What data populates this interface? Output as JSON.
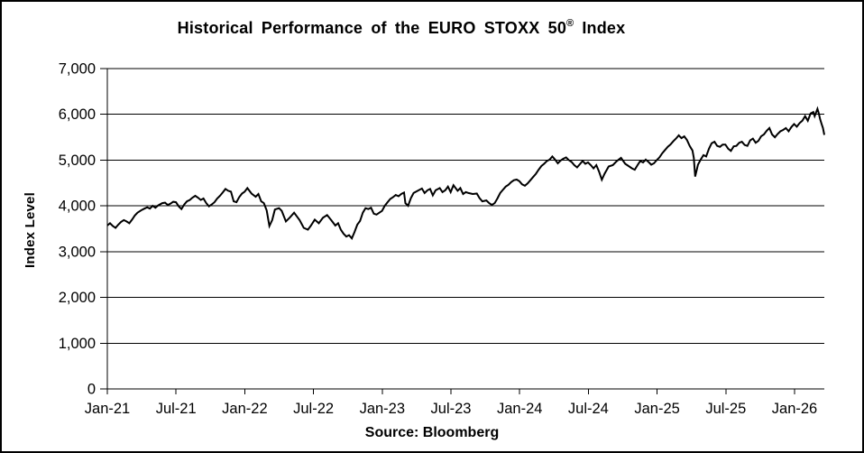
{
  "chart_data": {
    "type": "line",
    "title": "Historical Performance of the EURO STOXX 50® Index",
    "title_main": "Historical Performance of the EURO STOXX 50",
    "title_sup": "®",
    "title_tail": " Index",
    "ylabel": "Index Level",
    "xlabel": "",
    "source": "Source: Bloomberg",
    "ylim": [
      0,
      7000
    ],
    "ytick_step": 1000,
    "ytick_labels": [
      "0",
      "1,000",
      "2,000",
      "3,000",
      "4,000",
      "5,000",
      "6,000",
      "7,000"
    ],
    "xtick_labels": [
      "Jan-21",
      "Jul-21",
      "Jan-22",
      "Jul-22",
      "Jan-23",
      "Jul-23",
      "Jan-24",
      "Jul-24",
      "Jan-25",
      "Jul-25",
      "Jan-26"
    ],
    "x_domain_years": [
      2021.0,
      2026.22
    ],
    "grid": true,
    "legend": "none",
    "line_color": "#000000",
    "line_width": 2,
    "background_color": "#ffffff",
    "series": [
      {
        "name": "EURO STOXX 50 Index Level",
        "x_unit": "decimal-year",
        "points": [
          [
            2021.0,
            3570
          ],
          [
            2021.02,
            3620
          ],
          [
            2021.04,
            3560
          ],
          [
            2021.06,
            3520
          ],
          [
            2021.08,
            3590
          ],
          [
            2021.1,
            3650
          ],
          [
            2021.12,
            3690
          ],
          [
            2021.14,
            3660
          ],
          [
            2021.16,
            3620
          ],
          [
            2021.18,
            3700
          ],
          [
            2021.2,
            3790
          ],
          [
            2021.22,
            3850
          ],
          [
            2021.25,
            3910
          ],
          [
            2021.27,
            3940
          ],
          [
            2021.29,
            3970
          ],
          [
            2021.31,
            3940
          ],
          [
            2021.33,
            4000
          ],
          [
            2021.35,
            3960
          ],
          [
            2021.37,
            4010
          ],
          [
            2021.4,
            4060
          ],
          [
            2021.42,
            4070
          ],
          [
            2021.44,
            4020
          ],
          [
            2021.46,
            4050
          ],
          [
            2021.48,
            4090
          ],
          [
            2021.5,
            4080
          ],
          [
            2021.52,
            3990
          ],
          [
            2021.54,
            3930
          ],
          [
            2021.56,
            4030
          ],
          [
            2021.58,
            4100
          ],
          [
            2021.6,
            4130
          ],
          [
            2021.62,
            4180
          ],
          [
            2021.64,
            4220
          ],
          [
            2021.66,
            4180
          ],
          [
            2021.68,
            4130
          ],
          [
            2021.7,
            4160
          ],
          [
            2021.72,
            4060
          ],
          [
            2021.74,
            3990
          ],
          [
            2021.76,
            4030
          ],
          [
            2021.78,
            4080
          ],
          [
            2021.8,
            4160
          ],
          [
            2021.82,
            4220
          ],
          [
            2021.84,
            4290
          ],
          [
            2021.86,
            4370
          ],
          [
            2021.88,
            4330
          ],
          [
            2021.9,
            4310
          ],
          [
            2021.92,
            4100
          ],
          [
            2021.94,
            4080
          ],
          [
            2021.96,
            4190
          ],
          [
            2021.98,
            4270
          ],
          [
            2022.0,
            4310
          ],
          [
            2022.02,
            4390
          ],
          [
            2022.05,
            4270
          ],
          [
            2022.08,
            4200
          ],
          [
            2022.1,
            4260
          ],
          [
            2022.12,
            4100
          ],
          [
            2022.14,
            4060
          ],
          [
            2022.16,
            3900
          ],
          [
            2022.18,
            3560
          ],
          [
            2022.2,
            3690
          ],
          [
            2022.22,
            3920
          ],
          [
            2022.25,
            3950
          ],
          [
            2022.27,
            3890
          ],
          [
            2022.3,
            3660
          ],
          [
            2022.33,
            3750
          ],
          [
            2022.36,
            3850
          ],
          [
            2022.4,
            3690
          ],
          [
            2022.43,
            3520
          ],
          [
            2022.46,
            3480
          ],
          [
            2022.48,
            3560
          ],
          [
            2022.51,
            3700
          ],
          [
            2022.54,
            3620
          ],
          [
            2022.57,
            3740
          ],
          [
            2022.6,
            3800
          ],
          [
            2022.63,
            3690
          ],
          [
            2022.66,
            3570
          ],
          [
            2022.68,
            3620
          ],
          [
            2022.7,
            3480
          ],
          [
            2022.72,
            3390
          ],
          [
            2022.74,
            3330
          ],
          [
            2022.76,
            3360
          ],
          [
            2022.78,
            3290
          ],
          [
            2022.8,
            3430
          ],
          [
            2022.82,
            3590
          ],
          [
            2022.84,
            3670
          ],
          [
            2022.86,
            3850
          ],
          [
            2022.88,
            3950
          ],
          [
            2022.9,
            3930
          ],
          [
            2022.92,
            3960
          ],
          [
            2022.94,
            3830
          ],
          [
            2022.96,
            3810
          ],
          [
            2022.98,
            3850
          ],
          [
            2023.0,
            3890
          ],
          [
            2023.02,
            4000
          ],
          [
            2023.04,
            4080
          ],
          [
            2023.06,
            4150
          ],
          [
            2023.08,
            4190
          ],
          [
            2023.1,
            4240
          ],
          [
            2023.12,
            4210
          ],
          [
            2023.14,
            4260
          ],
          [
            2023.16,
            4290
          ],
          [
            2023.17,
            4060
          ],
          [
            2023.19,
            4000
          ],
          [
            2023.21,
            4170
          ],
          [
            2023.23,
            4280
          ],
          [
            2023.26,
            4330
          ],
          [
            2023.29,
            4380
          ],
          [
            2023.31,
            4280
          ],
          [
            2023.33,
            4340
          ],
          [
            2023.35,
            4370
          ],
          [
            2023.37,
            4230
          ],
          [
            2023.39,
            4340
          ],
          [
            2023.42,
            4390
          ],
          [
            2023.44,
            4300
          ],
          [
            2023.46,
            4340
          ],
          [
            2023.48,
            4420
          ],
          [
            2023.5,
            4300
          ],
          [
            2023.52,
            4450
          ],
          [
            2023.55,
            4330
          ],
          [
            2023.57,
            4390
          ],
          [
            2023.59,
            4260
          ],
          [
            2023.61,
            4300
          ],
          [
            2023.63,
            4280
          ],
          [
            2023.66,
            4260
          ],
          [
            2023.69,
            4270
          ],
          [
            2023.71,
            4170
          ],
          [
            2023.73,
            4100
          ],
          [
            2023.76,
            4120
          ],
          [
            2023.78,
            4060
          ],
          [
            2023.8,
            4020
          ],
          [
            2023.82,
            4060
          ],
          [
            2023.84,
            4160
          ],
          [
            2023.86,
            4280
          ],
          [
            2023.88,
            4350
          ],
          [
            2023.9,
            4420
          ],
          [
            2023.92,
            4460
          ],
          [
            2023.94,
            4520
          ],
          [
            2023.96,
            4560
          ],
          [
            2023.98,
            4575
          ],
          [
            2024.0,
            4540
          ],
          [
            2024.02,
            4470
          ],
          [
            2024.04,
            4440
          ],
          [
            2024.06,
            4490
          ],
          [
            2024.08,
            4560
          ],
          [
            2024.1,
            4630
          ],
          [
            2024.12,
            4700
          ],
          [
            2024.14,
            4790
          ],
          [
            2024.16,
            4870
          ],
          [
            2024.18,
            4920
          ],
          [
            2024.2,
            4980
          ],
          [
            2024.22,
            5010
          ],
          [
            2024.24,
            5080
          ],
          [
            2024.26,
            5010
          ],
          [
            2024.28,
            4930
          ],
          [
            2024.3,
            4990
          ],
          [
            2024.32,
            5030
          ],
          [
            2024.34,
            5060
          ],
          [
            2024.36,
            5000
          ],
          [
            2024.38,
            4960
          ],
          [
            2024.4,
            4890
          ],
          [
            2024.42,
            4840
          ],
          [
            2024.44,
            4910
          ],
          [
            2024.46,
            4980
          ],
          [
            2024.48,
            4920
          ],
          [
            2024.5,
            4950
          ],
          [
            2024.52,
            4890
          ],
          [
            2024.54,
            4820
          ],
          [
            2024.56,
            4890
          ],
          [
            2024.58,
            4750
          ],
          [
            2024.6,
            4570
          ],
          [
            2024.62,
            4700
          ],
          [
            2024.65,
            4860
          ],
          [
            2024.68,
            4890
          ],
          [
            2024.71,
            4980
          ],
          [
            2024.74,
            5050
          ],
          [
            2024.77,
            4920
          ],
          [
            2024.8,
            4860
          ],
          [
            2024.82,
            4820
          ],
          [
            2024.84,
            4790
          ],
          [
            2024.86,
            4890
          ],
          [
            2024.88,
            4980
          ],
          [
            2024.9,
            4950
          ],
          [
            2024.92,
            5010
          ],
          [
            2024.94,
            4960
          ],
          [
            2024.96,
            4900
          ],
          [
            2024.98,
            4930
          ],
          [
            2025.0,
            5000
          ],
          [
            2025.02,
            5060
          ],
          [
            2025.04,
            5150
          ],
          [
            2025.06,
            5220
          ],
          [
            2025.08,
            5290
          ],
          [
            2025.1,
            5340
          ],
          [
            2025.12,
            5410
          ],
          [
            2025.14,
            5470
          ],
          [
            2025.16,
            5540
          ],
          [
            2025.18,
            5480
          ],
          [
            2025.2,
            5520
          ],
          [
            2025.22,
            5440
          ],
          [
            2025.24,
            5310
          ],
          [
            2025.26,
            5210
          ],
          [
            2025.27,
            5050
          ],
          [
            2025.28,
            4640
          ],
          [
            2025.3,
            4900
          ],
          [
            2025.32,
            5010
          ],
          [
            2025.34,
            5110
          ],
          [
            2025.36,
            5080
          ],
          [
            2025.38,
            5250
          ],
          [
            2025.4,
            5370
          ],
          [
            2025.42,
            5400
          ],
          [
            2025.44,
            5310
          ],
          [
            2025.46,
            5290
          ],
          [
            2025.48,
            5340
          ],
          [
            2025.5,
            5340
          ],
          [
            2025.52,
            5250
          ],
          [
            2025.54,
            5200
          ],
          [
            2025.56,
            5300
          ],
          [
            2025.58,
            5310
          ],
          [
            2025.6,
            5380
          ],
          [
            2025.62,
            5400
          ],
          [
            2025.64,
            5330
          ],
          [
            2025.66,
            5310
          ],
          [
            2025.68,
            5430
          ],
          [
            2025.7,
            5470
          ],
          [
            2025.72,
            5380
          ],
          [
            2025.74,
            5420
          ],
          [
            2025.76,
            5520
          ],
          [
            2025.78,
            5560
          ],
          [
            2025.8,
            5640
          ],
          [
            2025.82,
            5700
          ],
          [
            2025.84,
            5560
          ],
          [
            2025.86,
            5500
          ],
          [
            2025.88,
            5570
          ],
          [
            2025.9,
            5630
          ],
          [
            2025.92,
            5660
          ],
          [
            2025.94,
            5700
          ],
          [
            2025.96,
            5630
          ],
          [
            2025.98,
            5720
          ],
          [
            2026.0,
            5790
          ],
          [
            2026.02,
            5730
          ],
          [
            2026.04,
            5810
          ],
          [
            2026.06,
            5860
          ],
          [
            2026.08,
            5960
          ],
          [
            2026.1,
            5860
          ],
          [
            2026.12,
            6020
          ],
          [
            2026.14,
            6050
          ],
          [
            2026.15,
            5960
          ],
          [
            2026.17,
            6120
          ],
          [
            2026.18,
            6020
          ],
          [
            2026.19,
            5890
          ],
          [
            2026.2,
            5790
          ],
          [
            2026.21,
            5700
          ],
          [
            2026.22,
            5550
          ]
        ]
      }
    ]
  }
}
